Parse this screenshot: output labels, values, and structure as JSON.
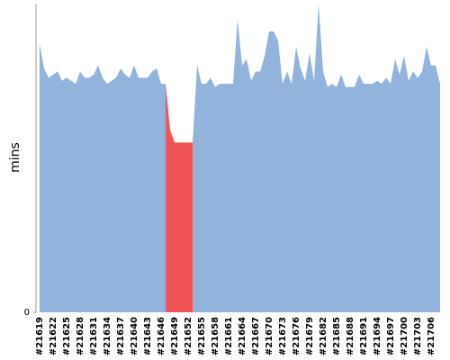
{
  "chart_data": {
    "type": "area",
    "y_label": "mins",
    "categories": [
      "#21619",
      null,
      null,
      "#21622",
      null,
      null,
      "#21625",
      null,
      null,
      "#21628",
      null,
      null,
      "#21631",
      null,
      null,
      "#21634",
      null,
      null,
      "#21637",
      null,
      null,
      "#21640",
      null,
      null,
      "#21643",
      null,
      null,
      "#21646",
      null,
      null,
      "#21649",
      null,
      null,
      "#21652",
      null,
      null,
      "#21655",
      null,
      null,
      "#21658",
      null,
      null,
      "#21661",
      null,
      null,
      "#21664",
      null,
      null,
      "#21667",
      null,
      null,
      "#21670",
      null,
      null,
      "#21673",
      null,
      null,
      "#21676",
      null,
      null,
      "#21679",
      null,
      null,
      "#21682",
      null,
      null,
      "#21685",
      null,
      null,
      "#21688",
      null,
      null,
      "#21691",
      null,
      null,
      "#21694",
      null,
      null,
      "#21697",
      null,
      null,
      "#21700",
      null,
      null,
      "#21703",
      null,
      null,
      "#21706",
      null,
      null
    ],
    "series": [
      {
        "color": "#92b3db",
        "values": [
          87,
          79,
          76,
          77,
          78,
          75,
          76,
          75,
          74,
          78,
          76,
          76,
          77,
          80,
          76,
          74,
          75,
          76,
          79,
          77,
          76,
          80,
          76,
          76,
          76,
          78,
          79,
          74,
          74,
          null,
          null,
          null,
          null,
          null,
          55,
          80,
          74,
          74,
          76,
          73,
          74,
          74,
          74,
          74,
          95,
          80,
          82,
          75,
          78,
          78,
          83,
          91,
          91,
          88,
          74,
          78,
          74,
          86,
          79,
          75,
          84,
          75,
          100,
          78,
          73,
          74,
          73,
          77,
          73,
          73,
          73,
          77,
          74,
          74,
          74,
          75,
          74,
          76,
          74,
          82,
          77,
          83,
          75,
          78,
          76,
          78,
          86,
          80,
          80,
          74
        ]
      },
      {
        "color": "#f05454",
        "values": [
          null,
          null,
          null,
          null,
          null,
          null,
          null,
          null,
          null,
          null,
          null,
          null,
          null,
          null,
          null,
          null,
          null,
          null,
          null,
          null,
          null,
          null,
          null,
          null,
          null,
          null,
          null,
          null,
          74,
          59,
          55,
          55,
          55,
          55,
          55,
          null,
          null,
          null,
          null,
          null,
          null,
          null,
          null,
          null,
          null,
          null,
          null,
          null,
          null,
          null,
          null,
          null,
          null,
          null,
          null,
          null,
          null,
          null,
          null,
          null,
          null,
          null,
          null,
          null,
          null,
          null,
          null,
          null,
          null,
          null,
          null,
          null,
          null,
          null,
          null,
          null,
          null,
          null,
          null,
          null,
          null,
          null,
          null,
          null,
          null,
          null,
          null,
          null,
          null,
          null
        ]
      }
    ],
    "ylim": [
      0,
      100
    ],
    "yticks": [
      0
    ]
  }
}
